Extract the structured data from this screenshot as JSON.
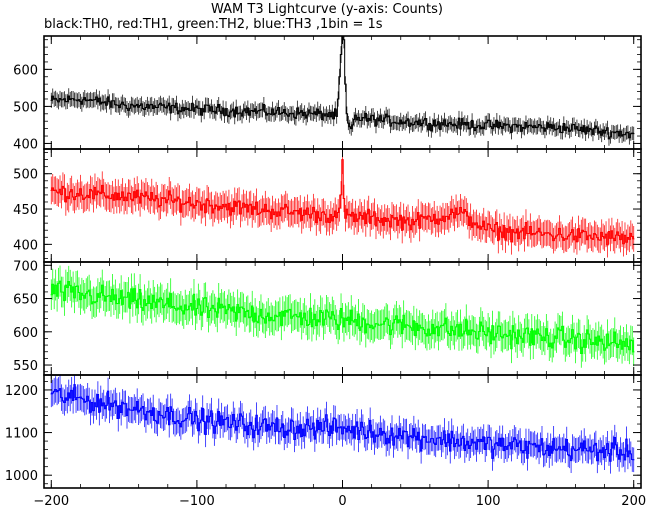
{
  "title": "WAM T3 Lightcurve (y-axis: Counts)",
  "subtitle": "black:TH0, red:TH1, green:TH2, blue:TH3 ,1bin = 1s",
  "chart_data": {
    "type": "line",
    "xlim": [
      -205,
      205
    ],
    "x_ticks": [
      -200,
      -100,
      0,
      100,
      200
    ],
    "grid": false,
    "panels": [
      {
        "name": "TH0",
        "color": "#000000",
        "ylim": [
          385,
          690
        ],
        "y_ticks": [
          400,
          500,
          600
        ],
        "trend": [
          [
            -200,
            515
          ],
          [
            -180,
            520
          ],
          [
            -150,
            503
          ],
          [
            -100,
            492
          ],
          [
            -50,
            485
          ],
          [
            -10,
            478
          ],
          [
            20,
            465
          ],
          [
            60,
            455
          ],
          [
            100,
            448
          ],
          [
            150,
            443
          ],
          [
            200,
            425
          ]
        ],
        "noise": 22,
        "features": [
          {
            "x": [
              -3,
              3
            ],
            "points": [
              [
                -3,
                520
              ],
              [
                -1,
                640
              ],
              [
                0,
                700
              ],
              [
                1,
                680
              ],
              [
                2,
                560
              ],
              [
                3,
                480
              ]
            ]
          },
          {
            "x": [
              4,
              8
            ],
            "points": [
              [
                4,
                455
              ],
              [
                5,
                445
              ],
              [
                6,
                440
              ],
              [
                7,
                450
              ],
              [
                8,
                465
              ]
            ]
          }
        ]
      },
      {
        "name": "TH1",
        "color": "#ff0000",
        "ylim": [
          375,
          535
        ],
        "y_ticks": [
          400,
          450,
          500
        ],
        "trend": [
          [
            -200,
            475
          ],
          [
            -150,
            468
          ],
          [
            -100,
            458
          ],
          [
            -50,
            448
          ],
          [
            0,
            440
          ],
          [
            50,
            432
          ],
          [
            80,
            445
          ],
          [
            100,
            420
          ],
          [
            150,
            413
          ],
          [
            200,
            408
          ]
        ],
        "noise": 17,
        "features": [
          {
            "x": [
              -1,
              1
            ],
            "points": [
              [
                -1,
                470
              ],
              [
                0,
                520
              ],
              [
                1,
                465
              ]
            ]
          }
        ]
      },
      {
        "name": "TH2",
        "color": "#00ff00",
        "ylim": [
          535,
          705
        ],
        "y_ticks": [
          550,
          600,
          650,
          700
        ],
        "trend": [
          [
            -200,
            662
          ],
          [
            -150,
            648
          ],
          [
            -100,
            635
          ],
          [
            -50,
            625
          ],
          [
            0,
            618
          ],
          [
            50,
            608
          ],
          [
            100,
            598
          ],
          [
            150,
            590
          ],
          [
            200,
            580
          ]
        ],
        "noise": 25,
        "features": []
      },
      {
        "name": "TH3",
        "color": "#0000ff",
        "ylim": [
          970,
          1235
        ],
        "y_ticks": [
          1000,
          1100,
          1200
        ],
        "trend": [
          [
            -200,
            1190
          ],
          [
            -150,
            1160
          ],
          [
            -100,
            1130
          ],
          [
            -50,
            1112
          ],
          [
            0,
            1110
          ],
          [
            50,
            1090
          ],
          [
            100,
            1072
          ],
          [
            150,
            1062
          ],
          [
            200,
            1055
          ]
        ],
        "noise": 38,
        "features": []
      }
    ]
  }
}
